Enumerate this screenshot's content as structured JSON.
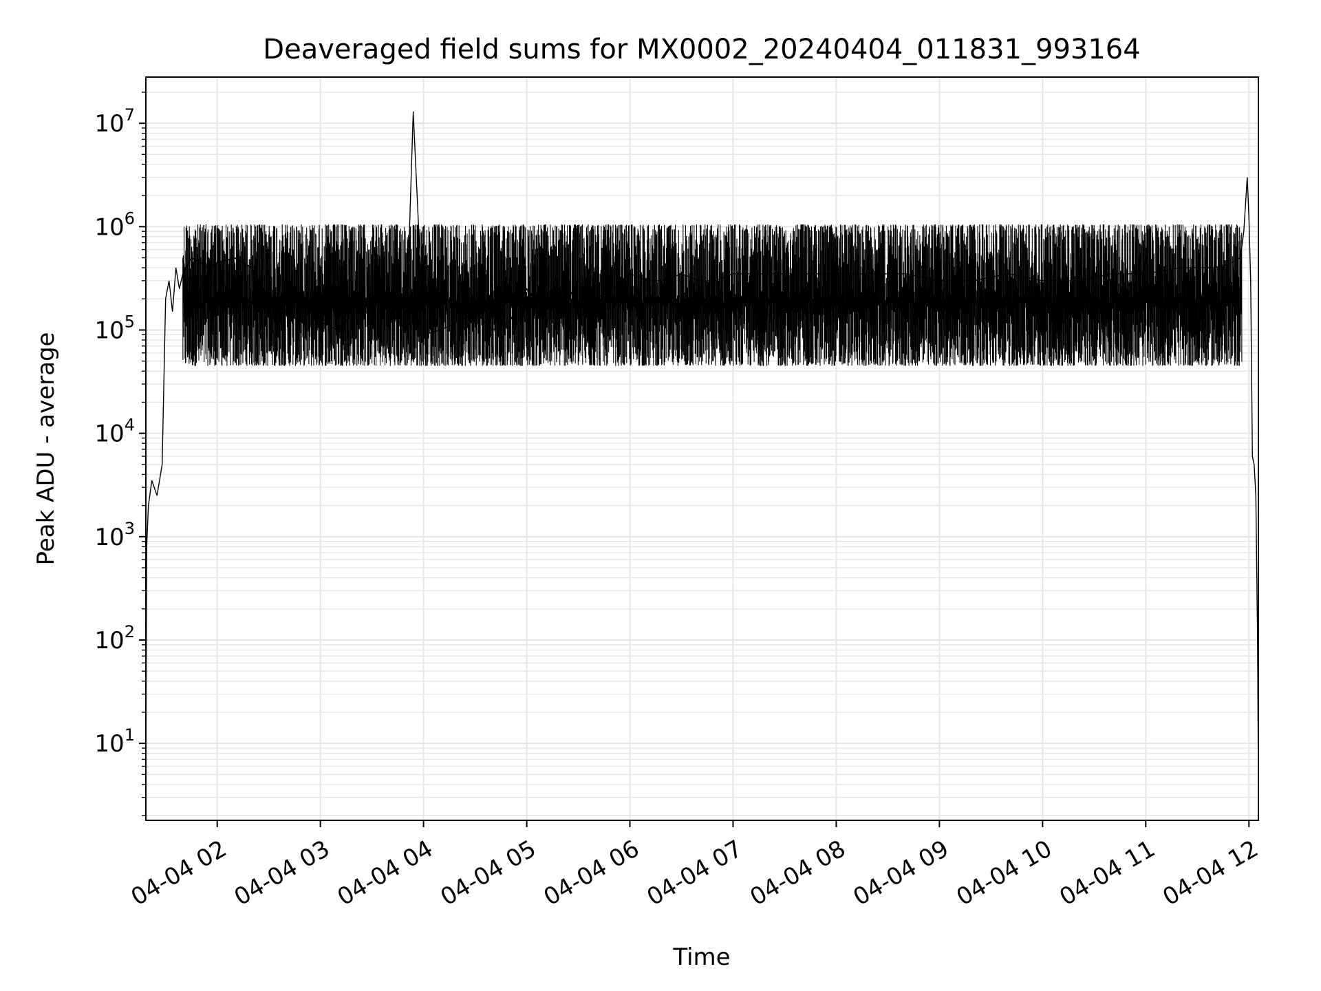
{
  "chart_data": {
    "type": "line",
    "title": "Deaveraged field sums for MX0002_20240404_011831_993164",
    "xlabel": "Time",
    "ylabel": "Peak ADU - average",
    "yscale": "log",
    "ylim": [
      1.8,
      28000000
    ],
    "xlim": [
      "2024-04-04 01:18:31",
      "2024-04-04 12:05:30"
    ],
    "grid": true,
    "line_color": "#000000",
    "grid_color": "#e5e5e5",
    "x_ticks": [
      {
        "label": "04-04 02",
        "value": "2024-04-04 02:00"
      },
      {
        "label": "04-04 03",
        "value": "2024-04-04 03:00"
      },
      {
        "label": "04-04 04",
        "value": "2024-04-04 04:00"
      },
      {
        "label": "04-04 05",
        "value": "2024-04-04 05:00"
      },
      {
        "label": "04-04 06",
        "value": "2024-04-04 06:00"
      },
      {
        "label": "04-04 07",
        "value": "2024-04-04 07:00"
      },
      {
        "label": "04-04 08",
        "value": "2024-04-04 08:00"
      },
      {
        "label": "04-04 09",
        "value": "2024-04-04 09:00"
      },
      {
        "label": "04-04 10",
        "value": "2024-04-04 10:00"
      },
      {
        "label": "04-04 11",
        "value": "2024-04-04 11:00"
      },
      {
        "label": "04-04 12",
        "value": "2024-04-04 12:00"
      }
    ],
    "y_ticks": [
      {
        "base": "10",
        "exp": "1",
        "value": 10
      },
      {
        "base": "10",
        "exp": "2",
        "value": 100
      },
      {
        "base": "10",
        "exp": "3",
        "value": 1000
      },
      {
        "base": "10",
        "exp": "4",
        "value": 10000
      },
      {
        "base": "10",
        "exp": "5",
        "value": 100000
      },
      {
        "base": "10",
        "exp": "6",
        "value": 1000000
      },
      {
        "base": "10",
        "exp": "7",
        "value": 10000000
      }
    ],
    "series": [
      {
        "x": [
          "2024-04-04 01:18:31",
          "2024-04-04 01:19:00",
          "2024-04-04 01:20:00",
          "2024-04-04 01:22:00",
          "2024-04-04 01:25:00",
          "2024-04-04 01:28:00",
          "2024-04-04 01:30:00",
          "2024-04-04 01:32:00",
          "2024-04-04 01:34:00",
          "2024-04-04 01:36:00",
          "2024-04-04 01:38:00",
          "2024-04-04 01:40:00",
          "2024-04-04 01:45:00",
          "2024-04-04 01:50:00",
          "2024-04-04 01:55:00",
          "2024-04-04 02:00:00",
          "2024-04-04 02:10:00",
          "2024-04-04 02:20:00",
          "2024-04-04 02:30:00",
          "2024-04-04 02:40:00",
          "2024-04-04 02:50:00",
          "2024-04-04 03:00:00",
          "2024-04-04 03:10:00",
          "2024-04-04 03:20:00",
          "2024-04-04 03:30:00",
          "2024-04-04 03:40:00",
          "2024-04-04 03:50:00",
          "2024-04-04 03:54:00",
          "2024-04-04 04:00:00",
          "2024-04-04 04:10:00",
          "2024-04-04 04:20:00",
          "2024-04-04 04:30:00",
          "2024-04-04 04:40:00",
          "2024-04-04 04:50:00",
          "2024-04-04 05:00:00",
          "2024-04-04 05:10:00",
          "2024-04-04 05:20:00",
          "2024-04-04 05:30:00",
          "2024-04-04 05:40:00",
          "2024-04-04 05:50:00",
          "2024-04-04 06:00:00",
          "2024-04-04 06:10:00",
          "2024-04-04 06:20:00",
          "2024-04-04 06:30:00",
          "2024-04-04 06:40:00",
          "2024-04-04 06:50:00",
          "2024-04-04 07:00:00",
          "2024-04-04 07:20:00",
          "2024-04-04 07:40:00",
          "2024-04-04 08:00:00",
          "2024-04-04 08:20:00",
          "2024-04-04 08:40:00",
          "2024-04-04 09:00:00",
          "2024-04-04 09:20:00",
          "2024-04-04 09:40:00",
          "2024-04-04 10:00:00",
          "2024-04-04 10:20:00",
          "2024-04-04 10:40:00",
          "2024-04-04 11:00:00",
          "2024-04-04 11:20:00",
          "2024-04-04 11:40:00",
          "2024-04-04 11:50:00",
          "2024-04-04 11:55:00",
          "2024-04-04 11:57:00",
          "2024-04-04 11:59:00",
          "2024-04-04 12:00:00",
          "2024-04-04 12:01:00",
          "2024-04-04 12:02:00",
          "2024-04-04 12:03:00",
          "2024-04-04 12:04:00",
          "2024-04-04 12:05:00",
          "2024-04-04 12:05:30"
        ],
        "y": [
          4.5,
          800,
          2000,
          3500,
          2500,
          5000,
          200000,
          300000,
          150000,
          400000,
          250000,
          350000,
          500000,
          450000,
          400000,
          450000,
          500000,
          400000,
          200000,
          150000,
          200000,
          120000,
          100000,
          150000,
          200000,
          150000,
          100000,
          13000000,
          90000,
          100000,
          120000,
          150000,
          100000,
          120000,
          250000,
          120000,
          150000,
          300000,
          200000,
          250000,
          350000,
          300000,
          300000,
          350000,
          300000,
          300000,
          350000,
          350000,
          350000,
          350000,
          350000,
          350000,
          300000,
          300000,
          350000,
          300000,
          300000,
          350000,
          350000,
          400000,
          400000,
          450000,
          500000,
          900000,
          3000000,
          1200000,
          300000,
          6000,
          5000,
          2500,
          100,
          3.5
        ]
      }
    ],
    "noise_band": {
      "from": "2024-04-04 01:40:00",
      "to": "2024-04-04 11:56:00",
      "low": 45000,
      "high": 1050000
    }
  }
}
